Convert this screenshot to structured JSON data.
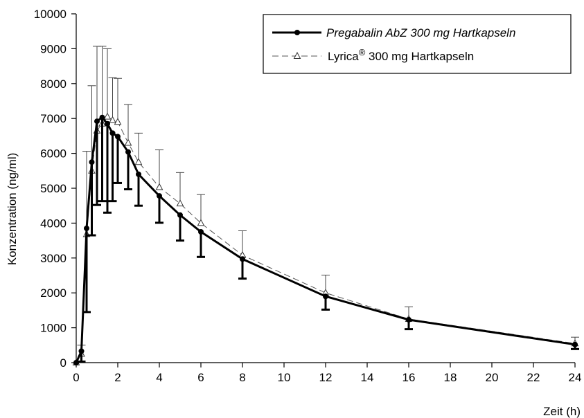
{
  "chart_data": {
    "type": "line",
    "xlabel": "Zeit (h)",
    "ylabel": "Konzentration (ng/ml)",
    "xlim": [
      0,
      24
    ],
    "ylim": [
      0,
      10000
    ],
    "x_ticks": [
      "0",
      "2",
      "4",
      "6",
      "8",
      "10",
      "12",
      "14",
      "16",
      "18",
      "20",
      "22",
      "24"
    ],
    "y_ticks": [
      "0",
      "1000",
      "2000",
      "3000",
      "4000",
      "5000",
      "6000",
      "7000",
      "8000",
      "9000",
      "10000"
    ],
    "grid": false,
    "legend_position": "top-right",
    "series": [
      {
        "name": "Pregabalin AbZ 300 mg Hartkapseln",
        "style": "solid",
        "marker": "filled-circle",
        "color": "#000000",
        "error_direction": "down",
        "x": [
          0,
          0.25,
          0.5,
          0.75,
          1,
          1.25,
          1.5,
          1.75,
          2,
          2.5,
          3,
          4,
          5,
          6,
          8,
          12,
          16,
          24
        ],
        "y": [
          0,
          330,
          3850,
          5750,
          6920,
          7030,
          6850,
          6580,
          6480,
          6040,
          5400,
          4780,
          4230,
          3750,
          2970,
          1900,
          1230,
          520
        ],
        "err": [
          0,
          300,
          2400,
          2100,
          2400,
          2400,
          2550,
          1950,
          1330,
          1070,
          900,
          770,
          730,
          720,
          560,
          380,
          270,
          130
        ]
      },
      {
        "name": "Lyrica",
        "name_superscript": "®",
        "name_suffix": " 300 mg Hartkapseln",
        "style": "dashed",
        "marker": "open-triangle",
        "color": "#555555",
        "error_direction": "up",
        "x": [
          0,
          0.25,
          0.5,
          0.75,
          1,
          1.25,
          1.5,
          1.75,
          2,
          2.5,
          3,
          4,
          5,
          6,
          8,
          12,
          16,
          24
        ],
        "y": [
          0,
          250,
          3680,
          5500,
          6650,
          6850,
          7050,
          6950,
          6900,
          6300,
          5750,
          5030,
          4560,
          4000,
          3080,
          2000,
          1250,
          550
        ],
        "err": [
          0,
          250,
          2380,
          2440,
          2420,
          2220,
          1950,
          1220,
          1250,
          1100,
          830,
          1070,
          890,
          820,
          700,
          510,
          350,
          180
        ]
      }
    ]
  }
}
